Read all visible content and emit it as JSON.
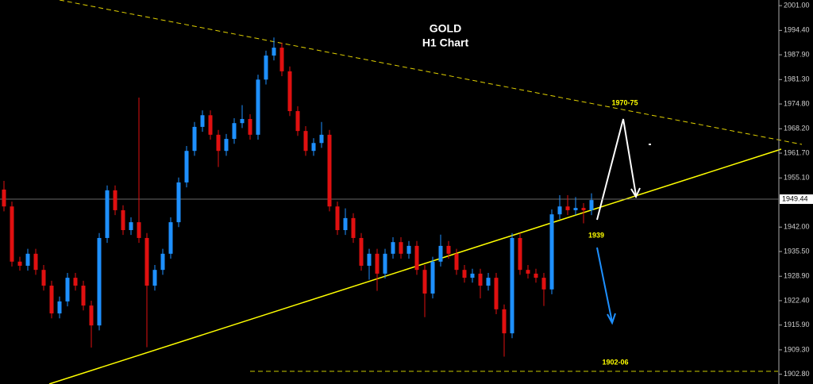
{
  "chart_data": {
    "type": "candlestick",
    "title": "GOLD",
    "subtitle": "H1 Chart",
    "annotations": [
      "1970-75",
      "1939",
      "1902-06"
    ],
    "up_color": "#1e90ff",
    "down_color": "#e01010",
    "current_price": 1949.44,
    "ylim": [
      1900.2,
      2002.5
    ],
    "yticks": [
      {
        "value": 2001.0,
        "label": "2001.00"
      },
      {
        "value": 1994.4,
        "label": "1994.40"
      },
      {
        "value": 1987.9,
        "label": "1987.90"
      },
      {
        "value": 1981.3,
        "label": "1981.30"
      },
      {
        "value": 1974.8,
        "label": "1974.80"
      },
      {
        "value": 1968.2,
        "label": "1968.20"
      },
      {
        "value": 1961.7,
        "label": "1961.70"
      },
      {
        "value": 1955.1,
        "label": "1955.10"
      },
      {
        "value": 1942.0,
        "label": "1942.00"
      },
      {
        "value": 1935.5,
        "label": "1935.50"
      },
      {
        "value": 1928.9,
        "label": "1928.90"
      },
      {
        "value": 1922.4,
        "label": "1922.40"
      },
      {
        "value": 1915.9,
        "label": "1915.90"
      },
      {
        "value": 1909.3,
        "label": "1909.30"
      },
      {
        "value": 1902.8,
        "label": "1902.80"
      }
    ],
    "open": [
      1952.0,
      1947.5,
      1932.8,
      1931.7,
      1934.9,
      1930.6,
      1926.4,
      1919.0,
      1922.2,
      1928.5,
      1926.4,
      1921.1,
      1915.8,
      1939.1,
      1951.8,
      1946.5,
      1941.2,
      1943.3,
      1939.1,
      1926.4,
      1930.6,
      1934.9,
      1943.3,
      1953.9,
      1962.3,
      1968.7,
      1971.8,
      1966.6,
      1962.3,
      1965.5,
      1969.7,
      1970.8,
      1966.6,
      1981.3,
      1987.7,
      1989.8,
      1983.5,
      1972.9,
      1967.6,
      1962.3,
      1964.4,
      1966.6,
      1947.5,
      1941.2,
      1944.4,
      1939.1,
      1931.7,
      1934.9,
      1929.6,
      1934.9,
      1938.0,
      1934.9,
      1937.0,
      1930.6,
      1924.3,
      1932.8,
      1937.0,
      1934.9,
      1930.6,
      1928.5,
      1929.6,
      1926.4,
      1928.5,
      1920.1,
      1913.7,
      1939.1,
      1930.6,
      1929.6,
      1928.5,
      1925.4,
      1945.4,
      1947.5,
      1946.5,
      1947.1,
      1946.5
    ],
    "high": [
      1954.3,
      1948.8,
      1934.1,
      1936.2,
      1936.2,
      1931.9,
      1927.7,
      1923.5,
      1929.8,
      1929.8,
      1927.7,
      1922.4,
      1940.4,
      1953.1,
      1953.1,
      1947.8,
      1944.6,
      1976.5,
      1940.4,
      1931.9,
      1936.2,
      1944.6,
      1955.2,
      1963.6,
      1970.0,
      1973.1,
      1973.1,
      1967.9,
      1966.8,
      1971.0,
      1974.5,
      1972.1,
      1982.6,
      1989.0,
      1992.5,
      1991.1,
      1984.8,
      1974.2,
      1968.9,
      1965.7,
      1970.0,
      1967.9,
      1948.8,
      1947.0,
      1945.7,
      1940.4,
      1936.2,
      1936.2,
      1936.2,
      1939.3,
      1939.3,
      1938.3,
      1938.3,
      1931.9,
      1934.1,
      1940.0,
      1938.3,
      1936.2,
      1931.9,
      1930.9,
      1930.9,
      1929.8,
      1929.8,
      1921.4,
      1940.4,
      1940.4,
      1931.9,
      1930.9,
      1929.8,
      1946.7,
      1950.5,
      1950.5,
      1950.0,
      1948.4,
      1951.0
    ],
    "low": [
      1946.2,
      1931.5,
      1930.4,
      1930.4,
      1929.3,
      1925.1,
      1917.7,
      1917.7,
      1920.9,
      1925.1,
      1919.8,
      1909.9,
      1914.5,
      1937.8,
      1945.2,
      1939.9,
      1939.9,
      1937.8,
      1910.0,
      1925.1,
      1929.3,
      1933.6,
      1942.0,
      1952.6,
      1961.0,
      1967.4,
      1965.3,
      1958.0,
      1961.0,
      1964.2,
      1968.4,
      1965.3,
      1965.3,
      1980.0,
      1986.4,
      1982.2,
      1971.6,
      1966.3,
      1961.0,
      1961.0,
      1963.1,
      1946.2,
      1939.9,
      1939.9,
      1937.8,
      1930.4,
      1928.0,
      1925.0,
      1928.3,
      1933.6,
      1933.6,
      1933.6,
      1929.3,
      1918.0,
      1923.0,
      1931.5,
      1933.6,
      1929.3,
      1927.2,
      1927.2,
      1923.0,
      1925.1,
      1918.8,
      1907.5,
      1912.4,
      1929.3,
      1928.3,
      1927.2,
      1921.0,
      1924.1,
      1944.1,
      1945.2,
      1945.2,
      1943.0,
      1945.2
    ],
    "close": [
      1947.5,
      1932.8,
      1931.7,
      1934.9,
      1930.6,
      1926.4,
      1919.0,
      1922.2,
      1928.5,
      1926.4,
      1921.1,
      1915.8,
      1939.1,
      1951.8,
      1946.5,
      1941.2,
      1943.3,
      1939.1,
      1926.4,
      1930.6,
      1934.9,
      1943.3,
      1953.9,
      1962.3,
      1968.7,
      1971.8,
      1966.6,
      1962.3,
      1965.5,
      1969.7,
      1970.8,
      1966.6,
      1981.3,
      1987.7,
      1989.8,
      1983.5,
      1972.9,
      1967.6,
      1962.3,
      1964.4,
      1966.6,
      1947.5,
      1941.2,
      1944.4,
      1939.1,
      1931.7,
      1934.9,
      1929.6,
      1934.9,
      1938.0,
      1934.9,
      1937.0,
      1930.6,
      1924.3,
      1932.8,
      1937.0,
      1934.9,
      1930.6,
      1928.5,
      1929.6,
      1926.4,
      1928.5,
      1920.1,
      1913.7,
      1939.1,
      1930.6,
      1929.6,
      1928.5,
      1925.4,
      1945.4,
      1947.5,
      1946.5,
      1947.1,
      1946.5,
      1949.2
    ]
  }
}
